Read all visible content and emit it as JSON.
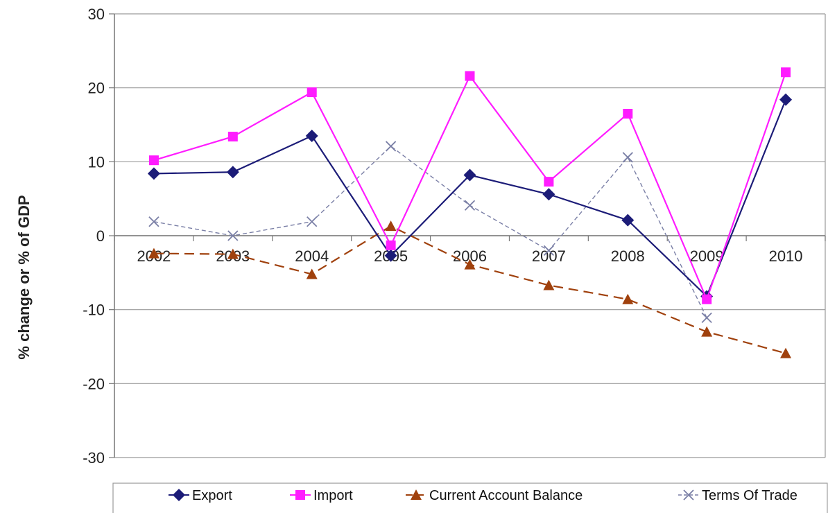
{
  "chart_data": {
    "type": "line",
    "title": "",
    "xlabel": "",
    "ylabel": "% change or % of GDP",
    "ylim": [
      -30,
      30
    ],
    "yticks": [
      30,
      20,
      10,
      0,
      -10,
      -20,
      -30
    ],
    "grid": "horizontal",
    "legend_position": "bottom",
    "categories": [
      "2002",
      "2003",
      "2004",
      "2005",
      "2006",
      "2007",
      "2008",
      "2009",
      "2010"
    ],
    "series": [
      {
        "name": "Export",
        "color": "#1c1c78",
        "marker": "diamond",
        "dash": "solid",
        "values": [
          8.4,
          8.6,
          13.5,
          -2.7,
          8.2,
          5.6,
          2.1,
          -8.2,
          18.4
        ]
      },
      {
        "name": "Import",
        "color": "#ff1cff",
        "marker": "square",
        "dash": "solid",
        "values": [
          10.2,
          13.4,
          19.4,
          -1.3,
          21.6,
          7.3,
          16.5,
          -8.6,
          22.1
        ]
      },
      {
        "name": "Current Account Balance",
        "color": "#a0410d",
        "marker": "triangle",
        "dash": "dashed",
        "values": [
          -2.4,
          -2.5,
          -5.2,
          1.3,
          -3.9,
          -6.7,
          -8.6,
          -13.0,
          -15.9
        ]
      },
      {
        "name": "Terms Of Trade",
        "color": "#7a7fa6",
        "marker": "x",
        "dash": "dashed",
        "values": [
          1.9,
          0.0,
          1.9,
          12.1,
          4.1,
          -2.0,
          10.6,
          -11.1,
          null
        ]
      }
    ]
  }
}
